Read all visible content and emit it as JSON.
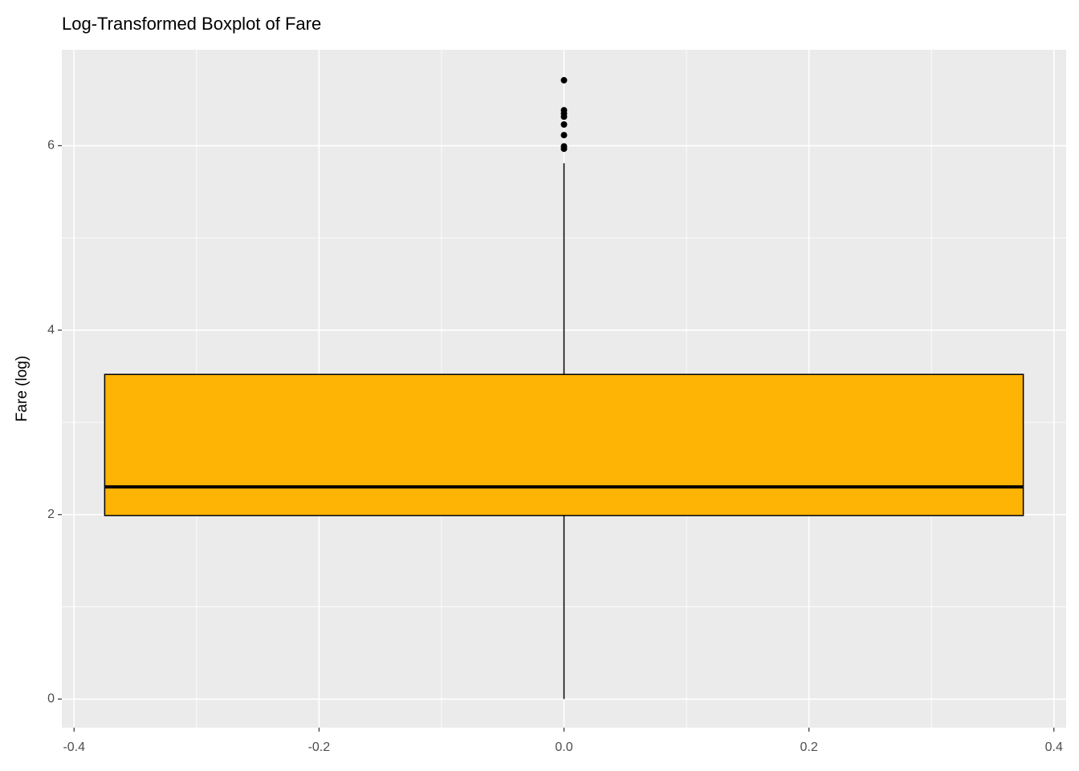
{
  "chart_data": {
    "type": "box",
    "title": "Log-Transformed Boxplot of Fare",
    "ylabel": "Fare (log)",
    "xlim": [
      -0.41,
      0.41
    ],
    "xticks": [
      -0.4,
      -0.2,
      0.0,
      0.2,
      0.4
    ],
    "xminor": [
      -0.3,
      -0.1,
      0.1,
      0.3
    ],
    "ylim": [
      -0.31,
      7.04
    ],
    "yticks": [
      0,
      2,
      4,
      6
    ],
    "yminor": [
      1,
      3,
      5
    ],
    "grid": true,
    "boxes": [
      {
        "x": 0,
        "width": 0.75,
        "whisker_low": 0,
        "q1": 1.99,
        "median": 2.3,
        "q3": 3.52,
        "whisker_high": 5.81,
        "outliers": [
          6.71,
          6.385,
          6.35,
          6.315,
          6.23,
          6.115,
          5.993,
          5.967
        ],
        "color": "#FDB404"
      }
    ]
  }
}
